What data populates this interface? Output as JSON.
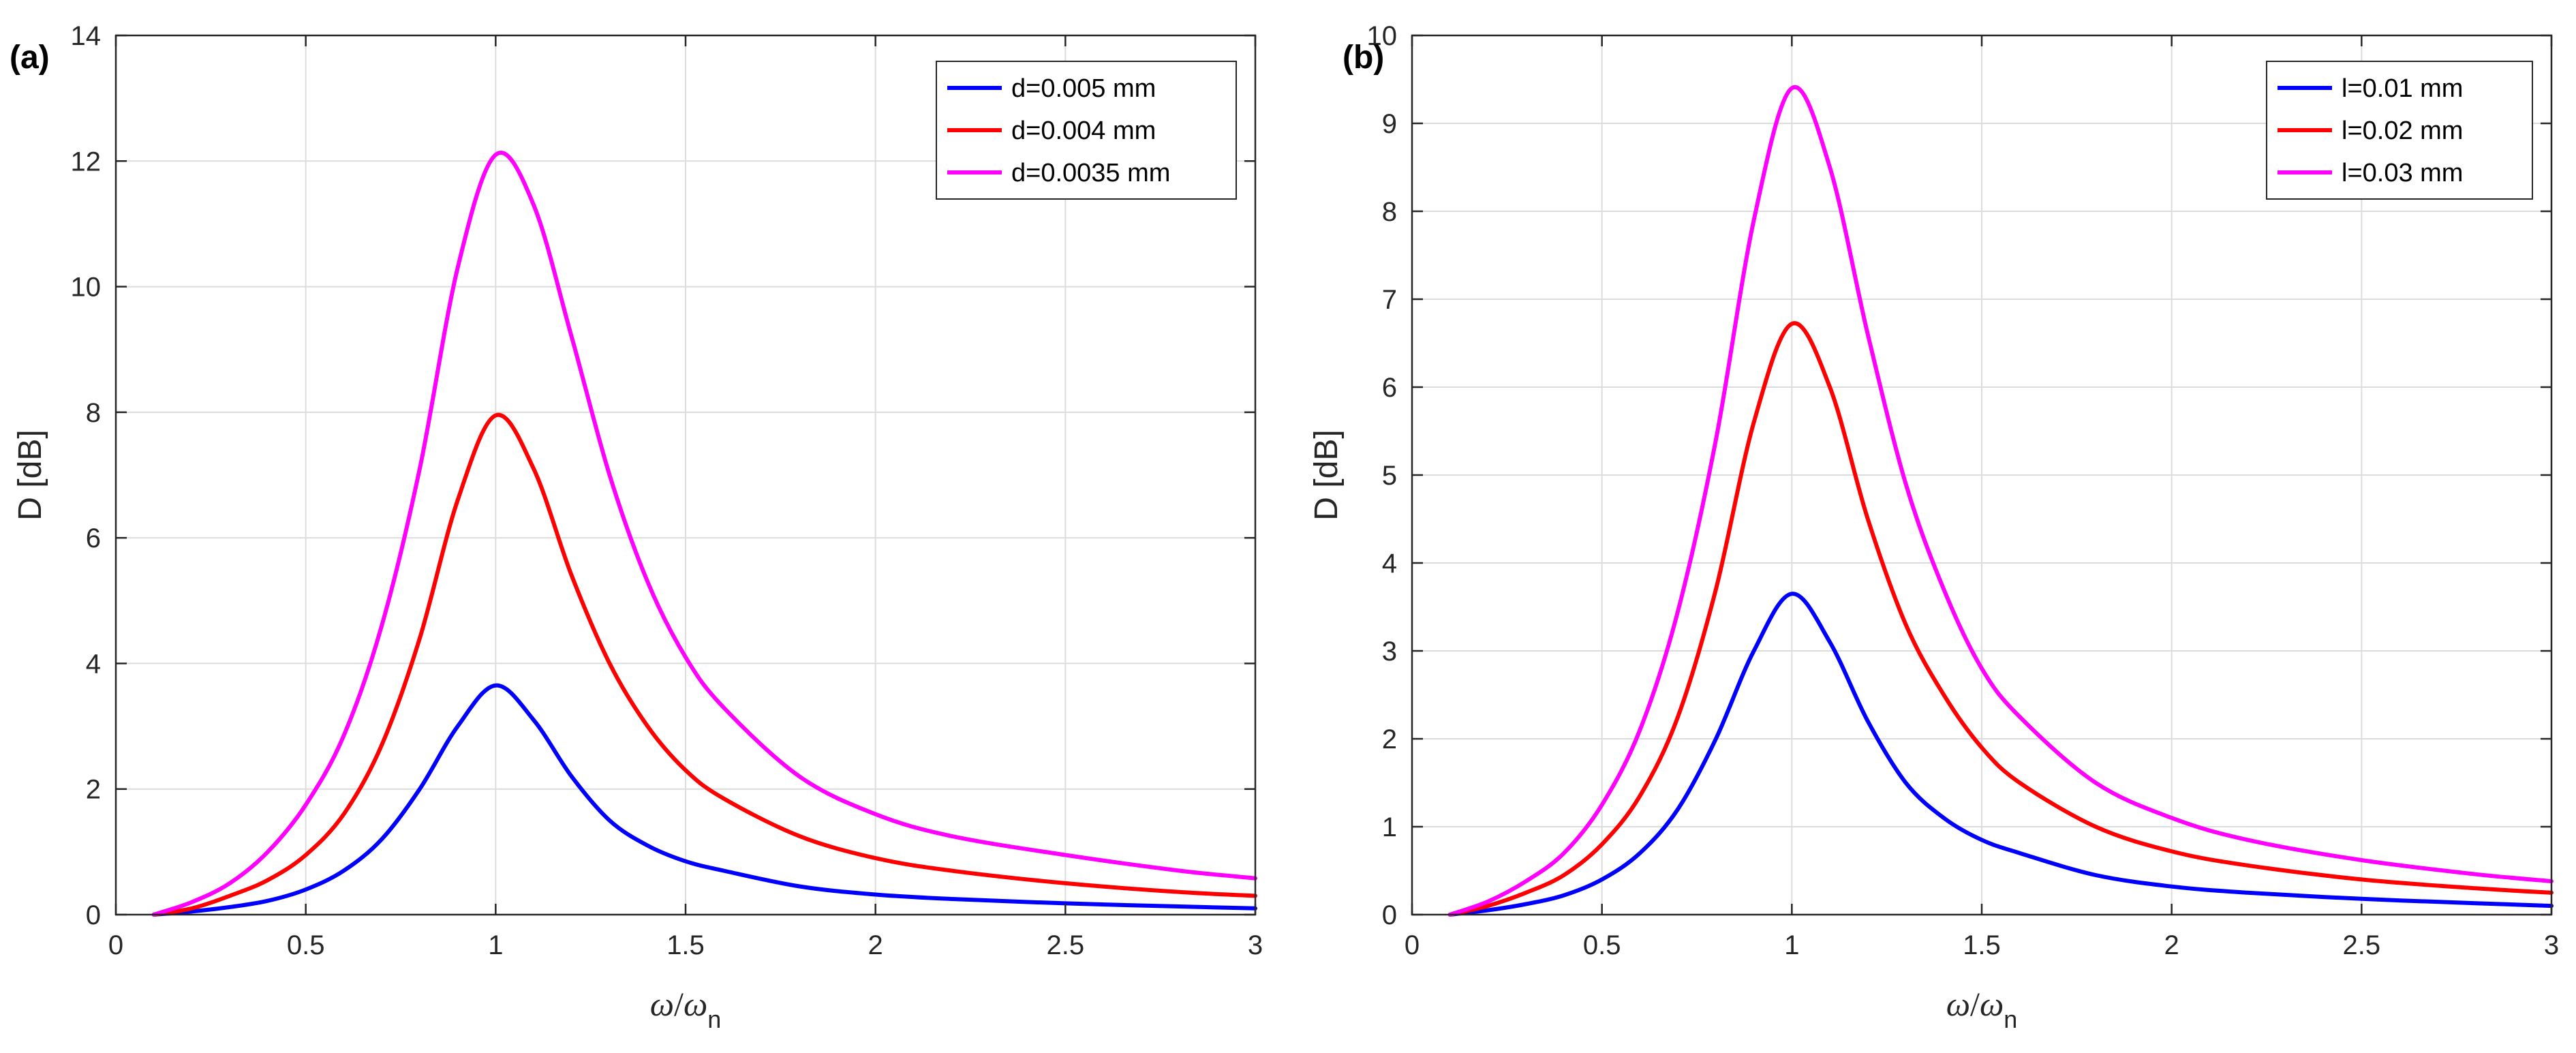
{
  "chart_data": [
    {
      "type": "line",
      "panel_label": "(a)",
      "xlabel": {
        "symbol": "ω",
        "separator": "/",
        "subscript": "n"
      },
      "ylabel": "D [dB]",
      "xlim": [
        0,
        3
      ],
      "ylim": [
        0,
        14
      ],
      "xticks": [
        0,
        0.5,
        1,
        1.5,
        2,
        2.5,
        3
      ],
      "xtick_labels": [
        "0",
        "0.5",
        "1",
        "1.5",
        "2",
        "2.5",
        "3"
      ],
      "yticks": [
        0,
        2,
        4,
        6,
        8,
        10,
        12,
        14
      ],
      "ytick_labels": [
        "0",
        "2",
        "4",
        "6",
        "8",
        "10",
        "12",
        "14"
      ],
      "grid": true,
      "legend_location": "top-right",
      "series": [
        {
          "name": "d=0.005 mm",
          "color": "#0000ff",
          "x": [
            0.1,
            0.2,
            0.3,
            0.4,
            0.5,
            0.6,
            0.7,
            0.8,
            0.9,
            1.0,
            1.1,
            1.2,
            1.3,
            1.4,
            1.5,
            1.6,
            1.8,
            2.0,
            2.2,
            2.5,
            2.8,
            3.0
          ],
          "y": [
            0.0,
            0.05,
            0.12,
            0.22,
            0.4,
            0.7,
            1.2,
            2.0,
            3.0,
            3.65,
            3.1,
            2.2,
            1.5,
            1.1,
            0.85,
            0.7,
            0.45,
            0.32,
            0.25,
            0.18,
            0.13,
            0.1
          ]
        },
        {
          "name": "d=0.004 mm",
          "color": "#ff0000",
          "x": [
            0.1,
            0.2,
            0.3,
            0.4,
            0.5,
            0.6,
            0.7,
            0.8,
            0.9,
            1.0,
            1.1,
            1.2,
            1.3,
            1.4,
            1.5,
            1.6,
            1.8,
            2.0,
            2.2,
            2.5,
            2.8,
            3.0
          ],
          "y": [
            0.0,
            0.1,
            0.3,
            0.55,
            0.95,
            1.6,
            2.7,
            4.4,
            6.6,
            7.95,
            7.1,
            5.4,
            4.0,
            3.0,
            2.3,
            1.85,
            1.25,
            0.9,
            0.7,
            0.5,
            0.36,
            0.3
          ]
        },
        {
          "name": "d=0.0035 mm",
          "color": "#ff00ff",
          "x": [
            0.1,
            0.2,
            0.3,
            0.4,
            0.5,
            0.6,
            0.7,
            0.8,
            0.9,
            1.0,
            1.1,
            1.2,
            1.3,
            1.4,
            1.5,
            1.6,
            1.8,
            2.0,
            2.2,
            2.5,
            2.8,
            3.0
          ],
          "y": [
            0.0,
            0.2,
            0.5,
            1.0,
            1.75,
            2.85,
            4.6,
            7.1,
            10.3,
            12.1,
            11.3,
            9.2,
            7.0,
            5.3,
            4.1,
            3.3,
            2.2,
            1.6,
            1.25,
            0.95,
            0.7,
            0.58
          ]
        }
      ]
    },
    {
      "type": "line",
      "panel_label": "(b)",
      "xlabel": {
        "symbol": "ω",
        "separator": "/",
        "subscript": "n"
      },
      "ylabel": "D [dB]",
      "xlim": [
        0,
        3
      ],
      "ylim": [
        0,
        10
      ],
      "xticks": [
        0,
        0.5,
        1,
        1.5,
        2,
        2.5,
        3
      ],
      "xtick_labels": [
        "0",
        "0.5",
        "1",
        "1.5",
        "2",
        "2.5",
        "3"
      ],
      "yticks": [
        0,
        1,
        2,
        3,
        4,
        5,
        6,
        7,
        8,
        9,
        10
      ],
      "ytick_labels": [
        "0",
        "1",
        "2",
        "3",
        "4",
        "5",
        "6",
        "7",
        "8",
        "9",
        "10"
      ],
      "grid": true,
      "legend_location": "top-right",
      "series": [
        {
          "name": "l=0.01 mm",
          "color": "#0000ff",
          "x": [
            0.1,
            0.2,
            0.3,
            0.4,
            0.5,
            0.6,
            0.7,
            0.8,
            0.9,
            1.0,
            1.1,
            1.2,
            1.3,
            1.4,
            1.5,
            1.6,
            1.8,
            2.0,
            2.2,
            2.5,
            2.8,
            3.0
          ],
          "y": [
            0.0,
            0.05,
            0.12,
            0.22,
            0.4,
            0.7,
            1.2,
            2.0,
            3.0,
            3.65,
            3.1,
            2.2,
            1.5,
            1.1,
            0.85,
            0.7,
            0.45,
            0.32,
            0.25,
            0.18,
            0.13,
            0.1
          ]
        },
        {
          "name": "l=0.02 mm",
          "color": "#ff0000",
          "x": [
            0.1,
            0.2,
            0.3,
            0.4,
            0.5,
            0.6,
            0.7,
            0.8,
            0.9,
            1.0,
            1.1,
            1.2,
            1.3,
            1.4,
            1.5,
            1.6,
            1.8,
            2.0,
            2.2,
            2.5,
            2.8,
            3.0
          ],
          "y": [
            0.0,
            0.1,
            0.25,
            0.45,
            0.8,
            1.35,
            2.25,
            3.7,
            5.6,
            6.72,
            6.0,
            4.5,
            3.3,
            2.5,
            1.9,
            1.5,
            1.0,
            0.72,
            0.56,
            0.4,
            0.3,
            0.25
          ]
        },
        {
          "name": "l=0.03 mm",
          "color": "#ff00ff",
          "x": [
            0.1,
            0.2,
            0.3,
            0.4,
            0.5,
            0.6,
            0.7,
            0.8,
            0.9,
            1.0,
            1.1,
            1.2,
            1.3,
            1.4,
            1.5,
            1.6,
            1.8,
            2.0,
            2.2,
            2.5,
            2.8,
            3.0
          ],
          "y": [
            0.0,
            0.15,
            0.38,
            0.7,
            1.25,
            2.1,
            3.45,
            5.4,
            7.9,
            9.4,
            8.5,
            6.6,
            4.9,
            3.7,
            2.8,
            2.25,
            1.5,
            1.1,
            0.85,
            0.62,
            0.46,
            0.38
          ]
        }
      ]
    }
  ]
}
